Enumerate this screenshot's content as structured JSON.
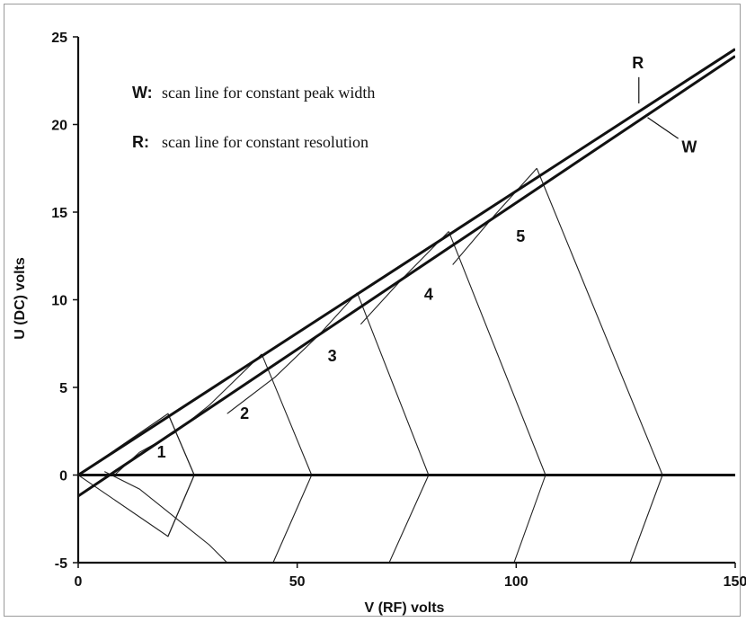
{
  "chart_data": {
    "type": "line",
    "xlabel": "V (RF) volts",
    "ylabel": "U (DC) volts",
    "xlim": [
      0,
      150
    ],
    "ylim": [
      -5,
      25
    ],
    "x_ticks": [
      "0",
      "50",
      "100",
      "150"
    ],
    "y_ticks": [
      "-5",
      "0",
      "5",
      "10",
      "15",
      "20",
      "25"
    ],
    "grid": false,
    "legend": [
      {
        "key": "W:",
        "text": "scan line for constant peak width"
      },
      {
        "key": "R:",
        "text": "scan line for constant resolution"
      }
    ],
    "line_labels": {
      "R": "R",
      "W": "W"
    },
    "series": [
      {
        "name": "R",
        "x": [
          0,
          150
        ],
        "y": [
          0,
          24.3
        ]
      },
      {
        "name": "W",
        "x": [
          0,
          150
        ],
        "y": [
          -1.2,
          23.9
        ]
      },
      {
        "name": "baseline",
        "x": [
          0,
          150
        ],
        "y": [
          0,
          0
        ]
      }
    ],
    "stability_regions": [
      {
        "label": "1",
        "x": [
          0,
          20.5,
          26.5,
          20.5,
          0
        ],
        "y": [
          0,
          3.5,
          0,
          -3.5,
          0
        ]
      },
      {
        "label": "2",
        "x": [
          41.9,
          53.3
        ],
        "y": [
          6.9,
          0
        ]
      },
      {
        "label": "3",
        "x": [
          63.7,
          80.0
        ],
        "y": [
          10.4,
          0
        ]
      },
      {
        "label": "4",
        "x": [
          84.6,
          106.7
        ],
        "y": [
          13.9,
          0
        ]
      },
      {
        "label": "5",
        "x": [
          104.7,
          133.4
        ],
        "y": [
          17.5,
          0
        ]
      }
    ]
  }
}
